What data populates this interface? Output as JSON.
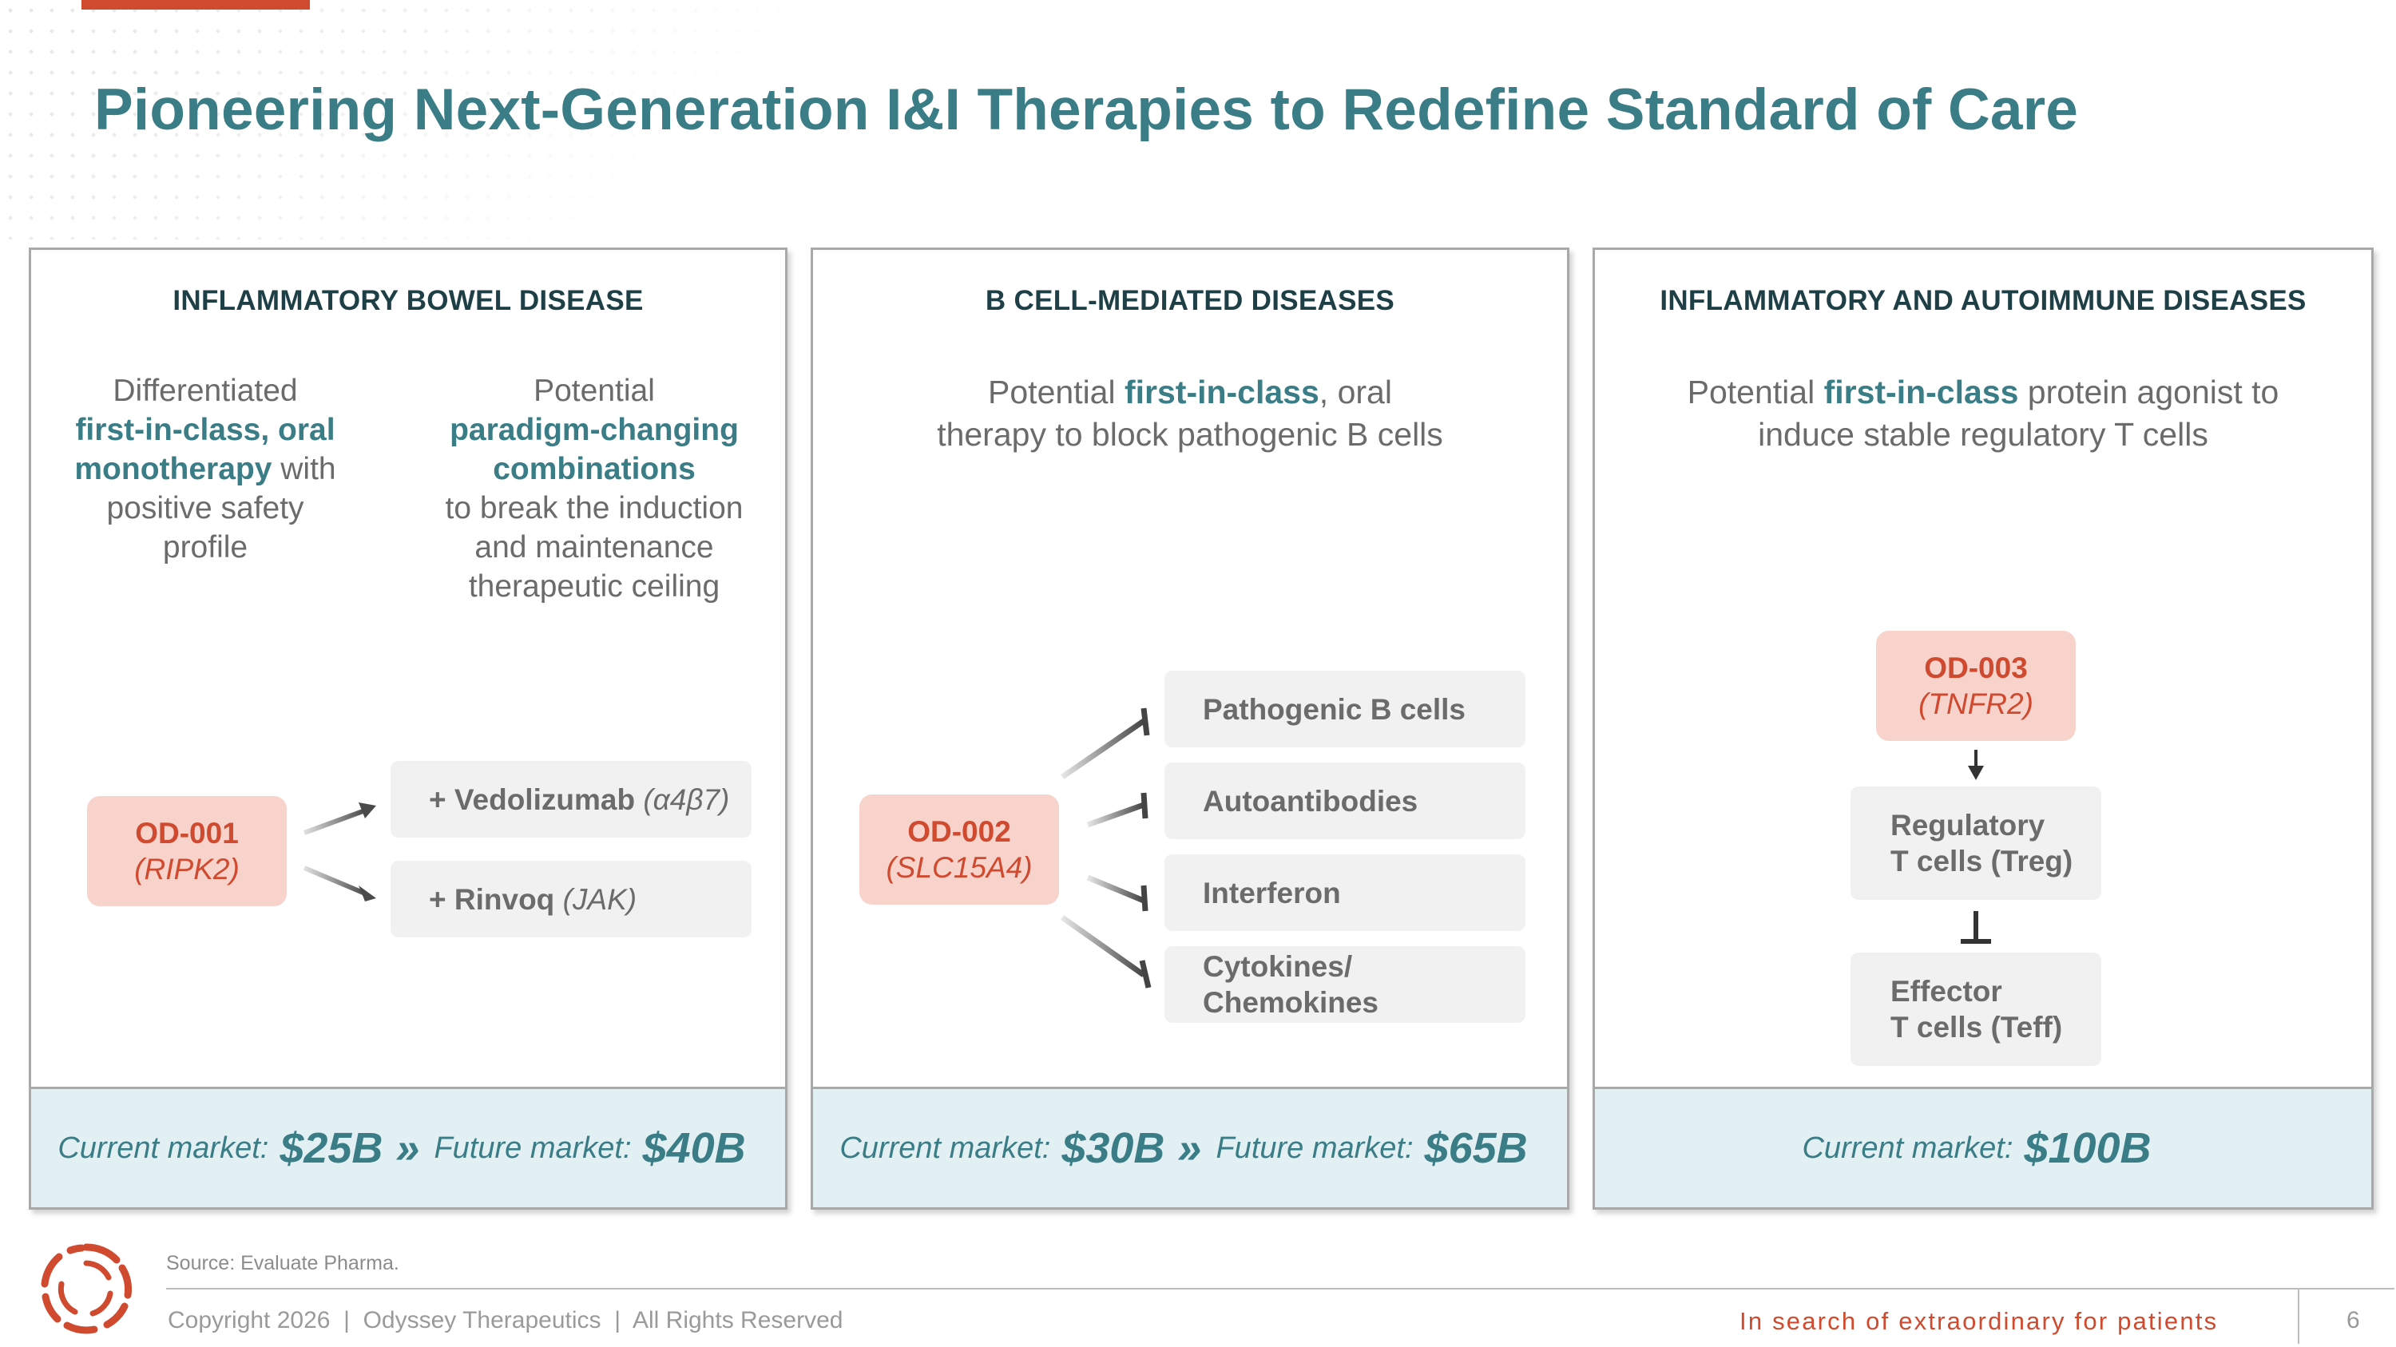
{
  "slide": {
    "title": "Pioneering Next-Generation I&I Therapies to Redefine Standard of Care"
  },
  "cards": [
    {
      "heading": "INFLAMMATORY BOWEL DISEASE",
      "desc_left": {
        "l1": "Differentiated",
        "l2_bold": "first-in-class, oral",
        "l3_bold": "monotherapy",
        "l3_rest": " with",
        "l4": "positive safety",
        "l5": "profile"
      },
      "desc_right": {
        "l1": "Potential",
        "l2_bold": "paradigm-changing",
        "l3_bold": "combinations",
        "l4": "to break the induction",
        "l5": "and maintenance",
        "l6": "therapeutic ceiling"
      },
      "drug": {
        "name": "OD-001",
        "target": "(RIPK2)"
      },
      "combos": [
        {
          "name": "+ Vedolizumab",
          "target": "(α4β7)"
        },
        {
          "name": "+ Rinvoq",
          "target": "(JAK)"
        }
      ],
      "market": {
        "current_label": "Current market:",
        "current_value": "$25B",
        "arrow": "»",
        "future_label": "Future market:",
        "future_value": "$40B"
      }
    },
    {
      "heading": "B CELL-MEDIATED DISEASES",
      "desc": {
        "l1_pre": "Potential ",
        "l1_bold": "first-in-class",
        "l1_post": ", oral",
        "l2": "therapy to block pathogenic B cells"
      },
      "drug": {
        "name": "OD-002",
        "target": "(SLC15A4)"
      },
      "targets": [
        {
          "line1": "Pathogenic B cells",
          "line2": ""
        },
        {
          "line1": "Autoantibodies",
          "line2": ""
        },
        {
          "line1": "Interferon",
          "line2": ""
        },
        {
          "line1": "Cytokines/",
          "line2": "Chemokines"
        }
      ],
      "market": {
        "current_label": "Current market:",
        "current_value": "$30B",
        "arrow": "»",
        "future_label": "Future market:",
        "future_value": "$65B"
      }
    },
    {
      "heading": "INFLAMMATORY AND AUTOIMMUNE DISEASES",
      "desc": {
        "l1_pre": "Potential ",
        "l1_bold": "first-in-class",
        "l1_post": " protein agonist to",
        "l2": "induce stable regulatory T cells"
      },
      "drug": {
        "name": "OD-003",
        "target": "(TNFR2)"
      },
      "treg": {
        "line1": "Regulatory",
        "line2": "T cells (Treg)"
      },
      "teff": {
        "line1": "Effector",
        "line2": "T cells (Teff)"
      },
      "market": {
        "current_label": "Current market:",
        "current_value": "$100B"
      }
    }
  ],
  "footer": {
    "source": "Source: Evaluate Pharma.",
    "copyright": "Copyright 2026  |  Odyssey Therapeutics  |  All Rights Reserved",
    "tagline": "In search of extraordinary for patients",
    "page_number": "6"
  },
  "colors": {
    "title_teal": "#3a7d87",
    "accent_red": "#cf4a2e",
    "drug_pink": "#f7d3cc",
    "pill_gray": "#f1f1f1",
    "market_blue": "#e2f0f4"
  },
  "icons": [
    "odyssey-logo-icon",
    "arrow-icon",
    "inhibit-arrow-icon"
  ]
}
